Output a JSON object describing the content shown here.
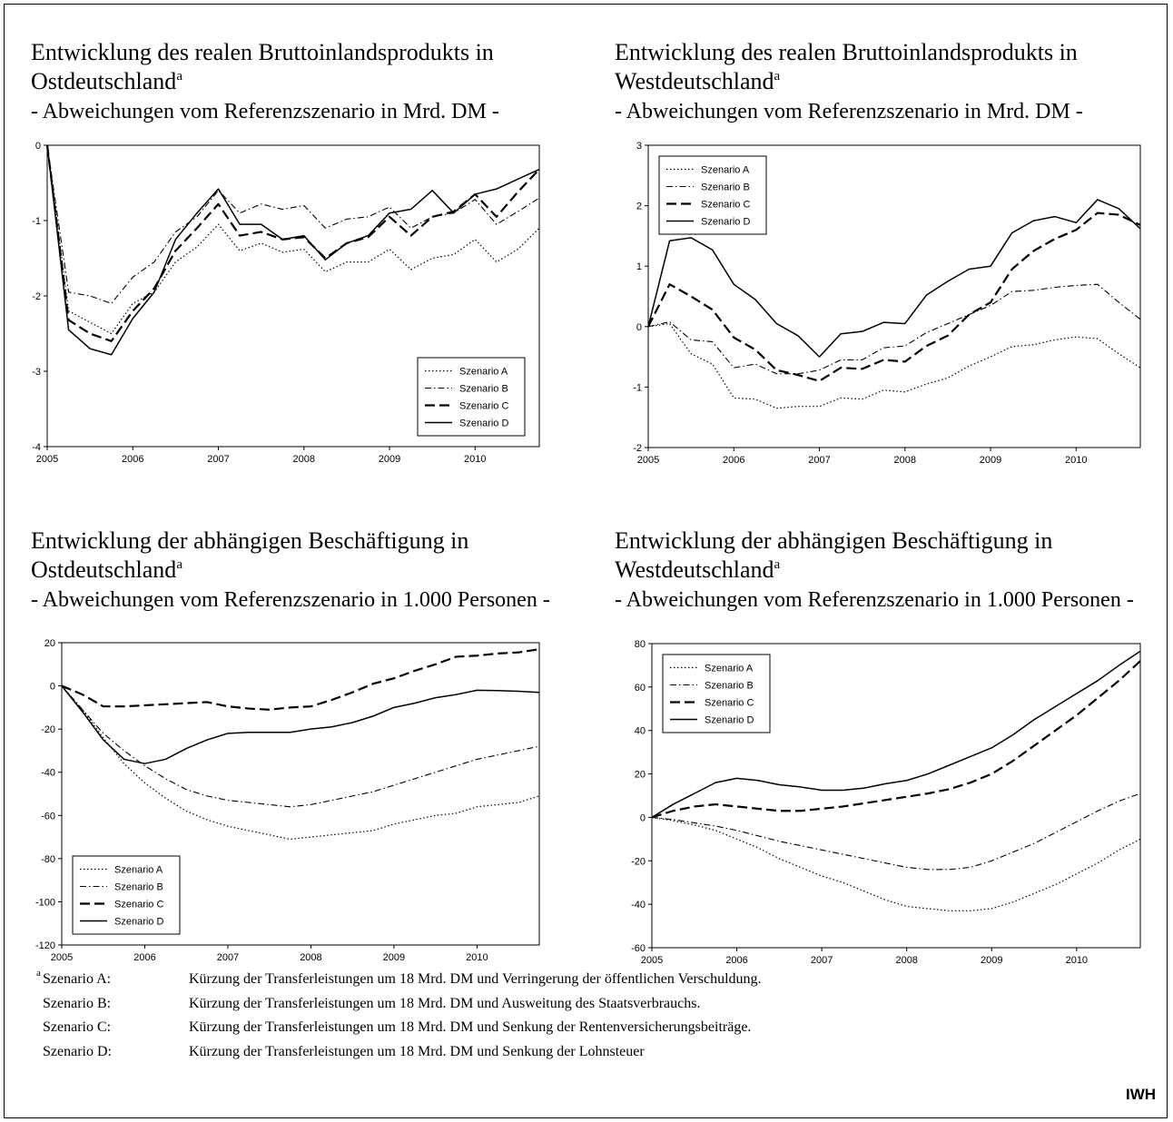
{
  "chart_data": [
    {
      "type": "line",
      "title": "Entwicklung des realen Bruttoinlandsprodukts in Ostdeutschland",
      "title_note": "a",
      "subtitle": "- Abweichungen vom Referenzszenario in Mrd. DM -",
      "x": [
        2005,
        2005.25,
        2005.5,
        2005.75,
        2006,
        2006.25,
        2006.5,
        2006.75,
        2007,
        2007.25,
        2007.5,
        2007.75,
        2008,
        2008.25,
        2008.5,
        2008.75,
        2009,
        2009.25,
        2009.5,
        2009.75,
        2010,
        2010.25,
        2010.5,
        2010.75
      ],
      "xlim": [
        2005,
        2010.75
      ],
      "xticks": [
        2005,
        2006,
        2007,
        2008,
        2009,
        2010
      ],
      "ylim": [
        -4,
        0
      ],
      "yticks": [
        -4,
        -3,
        -2,
        -1,
        0
      ],
      "legend": "lower right",
      "series": [
        {
          "name": "Szenario A",
          "color": "#000000",
          "line_style": "dotted",
          "values": [
            0,
            -2.2,
            -2.35,
            -2.5,
            -2.1,
            -1.95,
            -1.55,
            -1.35,
            -1.05,
            -1.4,
            -1.3,
            -1.42,
            -1.38,
            -1.68,
            -1.55,
            -1.55,
            -1.38,
            -1.65,
            -1.5,
            -1.45,
            -1.25,
            -1.55,
            -1.38,
            -1.1
          ]
        },
        {
          "name": "Szenario B",
          "color": "#000000",
          "line_style": "dashdot",
          "values": [
            0,
            -1.95,
            -2.0,
            -2.1,
            -1.75,
            -1.55,
            -1.15,
            -0.95,
            -0.6,
            -0.9,
            -0.78,
            -0.85,
            -0.8,
            -1.1,
            -0.98,
            -0.95,
            -0.82,
            -1.1,
            -0.95,
            -0.9,
            -0.72,
            -1.05,
            -0.88,
            -0.7
          ]
        },
        {
          "name": "Szenario C",
          "color": "#000000",
          "line_style": "dashed",
          "values": [
            0,
            -2.32,
            -2.5,
            -2.6,
            -2.2,
            -1.9,
            -1.4,
            -1.1,
            -0.78,
            -1.2,
            -1.15,
            -1.25,
            -1.22,
            -1.5,
            -1.3,
            -1.22,
            -0.95,
            -1.2,
            -0.95,
            -0.88,
            -0.65,
            -0.95,
            -0.62,
            -0.32
          ]
        },
        {
          "name": "Szenario D",
          "color": "#000000",
          "line_style": "solid",
          "values": [
            0,
            -2.45,
            -2.7,
            -2.78,
            -2.3,
            -1.95,
            -1.25,
            -0.9,
            -0.58,
            -1.05,
            -1.05,
            -1.25,
            -1.2,
            -1.52,
            -1.3,
            -1.2,
            -0.9,
            -0.85,
            -0.6,
            -0.9,
            -0.65,
            -0.58,
            -0.45,
            -0.32
          ]
        }
      ]
    },
    {
      "type": "line",
      "title": "Entwicklung des realen Bruttoinlandsprodukts in Westdeutschland",
      "title_note": "a",
      "subtitle": "- Abweichungen vom Referenzszenario in Mrd. DM -",
      "x": [
        2005,
        2005.25,
        2005.5,
        2005.75,
        2006,
        2006.25,
        2006.5,
        2006.75,
        2007,
        2007.25,
        2007.5,
        2007.75,
        2008,
        2008.25,
        2008.5,
        2008.75,
        2009,
        2009.25,
        2009.5,
        2009.75,
        2010,
        2010.25,
        2010.5,
        2010.75
      ],
      "xlim": [
        2005,
        2010.75
      ],
      "xticks": [
        2005,
        2006,
        2007,
        2008,
        2009,
        2010
      ],
      "ylim": [
        -2,
        3
      ],
      "yticks": [
        -2,
        -1,
        0,
        1,
        2,
        3
      ],
      "legend": "upper left",
      "series": [
        {
          "name": "Szenario A",
          "color": "#000000",
          "line_style": "dotted",
          "values": [
            0,
            0.05,
            -0.45,
            -0.62,
            -1.18,
            -1.2,
            -1.35,
            -1.32,
            -1.32,
            -1.18,
            -1.2,
            -1.05,
            -1.08,
            -0.95,
            -0.85,
            -0.65,
            -0.5,
            -0.33,
            -0.3,
            -0.22,
            -0.17,
            -0.2,
            -0.45,
            -0.68
          ]
        },
        {
          "name": "Szenario B",
          "color": "#000000",
          "line_style": "dashdot",
          "values": [
            0,
            0.08,
            -0.22,
            -0.25,
            -0.68,
            -0.62,
            -0.78,
            -0.78,
            -0.72,
            -0.55,
            -0.55,
            -0.35,
            -0.32,
            -0.1,
            0.05,
            0.2,
            0.35,
            0.58,
            0.6,
            0.65,
            0.68,
            0.7,
            0.4,
            0.12
          ]
        },
        {
          "name": "Szenario C",
          "color": "#000000",
          "line_style": "dashed",
          "values": [
            0,
            0.7,
            0.5,
            0.28,
            -0.18,
            -0.38,
            -0.72,
            -0.8,
            -0.9,
            -0.68,
            -0.7,
            -0.55,
            -0.58,
            -0.32,
            -0.15,
            0.2,
            0.4,
            0.95,
            1.25,
            1.45,
            1.6,
            1.88,
            1.85,
            1.68
          ]
        },
        {
          "name": "Szenario D",
          "color": "#000000",
          "line_style": "solid",
          "values": [
            0,
            1.42,
            1.47,
            1.27,
            0.7,
            0.45,
            0.05,
            -0.15,
            -0.5,
            -0.12,
            -0.08,
            0.07,
            0.05,
            0.52,
            0.75,
            0.95,
            1.0,
            1.55,
            1.75,
            1.82,
            1.72,
            2.1,
            1.95,
            1.62
          ]
        }
      ]
    },
    {
      "type": "line",
      "title": "Entwicklung der abhängigen Beschäftigung in Ostdeutschland",
      "title_note": "a",
      "subtitle": "- Abweichungen vom Referenzszenario in 1.000 Personen -",
      "x": [
        2005,
        2005.25,
        2005.5,
        2005.75,
        2006,
        2006.25,
        2006.5,
        2006.75,
        2007,
        2007.25,
        2007.5,
        2007.75,
        2008,
        2008.25,
        2008.5,
        2008.75,
        2009,
        2009.25,
        2009.5,
        2009.75,
        2010,
        2010.25,
        2010.5,
        2010.75
      ],
      "xlim": [
        2005,
        2010.75
      ],
      "xticks": [
        2005,
        2006,
        2007,
        2008,
        2009,
        2010
      ],
      "ylim": [
        -120,
        20
      ],
      "yticks": [
        -120,
        -100,
        -80,
        -60,
        -40,
        -20,
        0,
        20
      ],
      "legend": "lower left",
      "series": [
        {
          "name": "Szenario A",
          "color": "#000000",
          "line_style": "dotted",
          "values": [
            0,
            -11,
            -24,
            -36,
            -45,
            -52,
            -58,
            -62,
            -65,
            -67,
            -69,
            -71,
            -70,
            -69,
            -68,
            -67,
            -64,
            -62,
            -60,
            -59,
            -56,
            -55,
            -54,
            -51
          ]
        },
        {
          "name": "Szenario B",
          "color": "#000000",
          "line_style": "dashdot",
          "values": [
            0,
            -11,
            -22,
            -30,
            -37,
            -43,
            -48,
            -51,
            -53,
            -54,
            -55,
            -56,
            -55,
            -53,
            -51,
            -49,
            -46,
            -43,
            -40,
            -37,
            -34,
            -32,
            -30,
            -28
          ]
        },
        {
          "name": "Szenario C",
          "color": "#000000",
          "line_style": "dashed",
          "values": [
            0,
            -4,
            -9.5,
            -9.5,
            -9,
            -8.5,
            -8,
            -7.5,
            -9.5,
            -10.5,
            -11,
            -10,
            -9.5,
            -6.5,
            -3,
            1,
            3.5,
            7,
            10,
            13.5,
            14,
            15,
            15.5,
            17
          ]
        },
        {
          "name": "Szenario D",
          "color": "#000000",
          "line_style": "solid",
          "values": [
            0,
            -12,
            -25,
            -34,
            -36,
            -34,
            -29,
            -25,
            -22,
            -21.5,
            -21.5,
            -21.5,
            -20,
            -19,
            -17,
            -14,
            -10,
            -8,
            -5.5,
            -4,
            -2,
            -2.2,
            -2.5,
            -3
          ]
        }
      ]
    },
    {
      "type": "line",
      "title": "Entwicklung der abhängigen Beschäftigung in Westdeutschland",
      "title_note": "a",
      "subtitle": "- Abweichungen vom Referenzszenario in 1.000 Personen -",
      "x": [
        2005,
        2005.25,
        2005.5,
        2005.75,
        2006,
        2006.25,
        2006.5,
        2006.75,
        2007,
        2007.25,
        2007.5,
        2007.75,
        2008,
        2008.25,
        2008.5,
        2008.75,
        2009,
        2009.25,
        2009.5,
        2009.75,
        2010,
        2010.25,
        2010.5,
        2010.75
      ],
      "xlim": [
        2005,
        2010.75
      ],
      "xticks": [
        2005,
        2006,
        2007,
        2008,
        2009,
        2010
      ],
      "ylim": [
        -60,
        80
      ],
      "yticks": [
        -60,
        -40,
        -20,
        0,
        20,
        40,
        60,
        80
      ],
      "legend": "upper left",
      "series": [
        {
          "name": "Szenario A",
          "color": "#000000",
          "line_style": "dotted",
          "values": [
            0,
            -1.5,
            -3.5,
            -6,
            -10,
            -14,
            -19,
            -23,
            -27,
            -30,
            -34,
            -38,
            -41,
            -42,
            -43,
            -43,
            -42,
            -39,
            -35,
            -31,
            -26,
            -21,
            -15,
            -10
          ]
        },
        {
          "name": "Szenario B",
          "color": "#000000",
          "line_style": "dashdot",
          "values": [
            0,
            -1,
            -2.5,
            -4,
            -6,
            -8.5,
            -11,
            -13,
            -15,
            -17,
            -19,
            -21,
            -23,
            -24,
            -24,
            -23,
            -20,
            -16,
            -12,
            -7,
            -2,
            3,
            7.5,
            11
          ]
        },
        {
          "name": "Szenario C",
          "color": "#000000",
          "line_style": "dashed",
          "values": [
            0,
            3,
            5,
            6,
            5,
            4,
            3,
            3,
            4,
            5,
            6.5,
            8,
            9.5,
            11,
            13,
            16,
            20,
            26,
            33,
            40,
            47,
            55,
            63,
            72
          ]
        },
        {
          "name": "Szenario D",
          "color": "#000000",
          "line_style": "solid",
          "values": [
            0,
            6,
            11,
            16,
            18,
            17,
            15,
            14,
            12.5,
            12.5,
            13.5,
            15.5,
            17,
            20,
            24,
            28,
            32,
            38,
            45,
            51,
            57,
            63,
            70,
            76.5
          ]
        }
      ]
    }
  ],
  "footnote": {
    "mark": "a",
    "rows": [
      [
        "Szenario A:",
        "Kürzung der Transferleistungen um 18 Mrd. DM und Verringerung der öffentlichen Verschuldung."
      ],
      [
        "Szenario B:",
        "Kürzung der Transferleistungen um 18 Mrd. DM und Ausweitung des Staatsverbrauchs."
      ],
      [
        "Szenario C:",
        "Kürzung der Transferleistungen um 18 Mrd. DM und Senkung der Rentenversicherungsbeiträge."
      ],
      [
        "Szenario D:",
        "Kürzung der Transferleistungen um 18 Mrd. DM und Senkung der Lohnsteuer"
      ]
    ]
  },
  "source": "IWH"
}
